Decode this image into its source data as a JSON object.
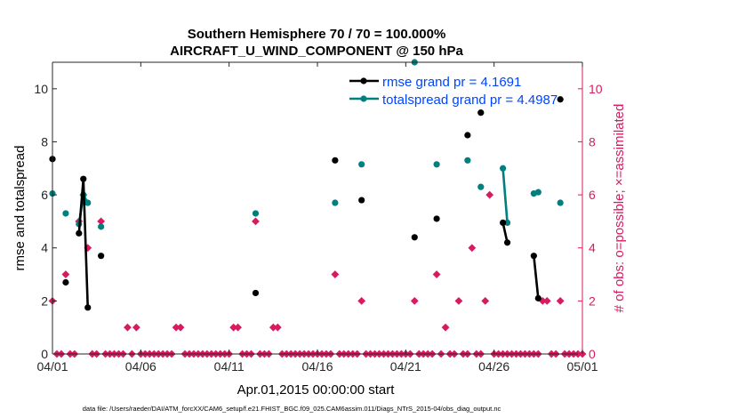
{
  "colors": {
    "rmse": "#000000",
    "spread": "#007f7f",
    "obs": "#d81b60",
    "legend_text": "#0044ff",
    "axis": "#262626"
  },
  "chart_data": {
    "type": "line",
    "title_line1": "Southern Hemisphere 70 / 70 = 100.000%",
    "title_line2": "AIRCRAFT_U_WIND_COMPONENT @ 150 hPa",
    "xlabel": "Apr.01,2015 00:00:00 start",
    "ylabel_left": "rmse and totalspread",
    "ylabel_right": "# of obs: o=possible; ×=assimilated",
    "xlim": [
      0,
      30
    ],
    "ylim_left": [
      0,
      11
    ],
    "ylim_right": [
      0,
      11
    ],
    "x_ticks": [
      0,
      5,
      10,
      15,
      20,
      25,
      30
    ],
    "x_tick_labels": [
      "04/01",
      "04/06",
      "04/11",
      "04/16",
      "04/21",
      "04/26",
      "05/01"
    ],
    "y_ticks_left": [
      0,
      2,
      4,
      6,
      8,
      10
    ],
    "y_tick_labels_left": [
      "0",
      "2",
      "4",
      "6",
      "8",
      "10"
    ],
    "y_ticks_right": [
      0,
      2,
      4,
      6,
      8,
      10
    ],
    "y_tick_labels_right": [
      "0",
      "2",
      "4",
      "6",
      "8",
      "10"
    ],
    "legend": [
      {
        "name": "rmse grand pr = 4.1691",
        "series": "rmse"
      },
      {
        "name": "totalspread grand pr = 4.4987",
        "series": "spread"
      }
    ],
    "series": [
      {
        "name": "rmse",
        "segments": [
          [
            [
              0.0,
              7.35
            ]
          ],
          [
            [
              0.75,
              2.7
            ]
          ],
          [
            [
              1.5,
              4.55
            ],
            [
              1.75,
              6.6
            ],
            [
              2.0,
              1.75
            ]
          ],
          [
            [
              2.75,
              3.7
            ]
          ],
          [
            [
              11.5,
              2.3
            ]
          ],
          [
            [
              16.0,
              7.3
            ]
          ],
          [
            [
              17.5,
              5.8
            ]
          ],
          [
            [
              20.5,
              4.4
            ]
          ],
          [
            [
              21.75,
              5.1
            ]
          ],
          [
            [
              23.5,
              8.25
            ]
          ],
          [
            [
              24.25,
              9.1
            ]
          ],
          [
            [
              25.5,
              4.95
            ],
            [
              25.75,
              4.2
            ]
          ],
          [
            [
              27.25,
              3.7
            ],
            [
              27.5,
              2.1
            ]
          ],
          [
            [
              28.75,
              9.6
            ]
          ]
        ]
      },
      {
        "name": "totalspread",
        "segments": [
          [
            [
              0.0,
              6.05
            ]
          ],
          [
            [
              0.75,
              5.3
            ]
          ],
          [
            [
              1.5,
              4.9
            ],
            [
              1.75,
              6.0
            ],
            [
              2.0,
              5.7
            ]
          ],
          [
            [
              2.75,
              4.8
            ]
          ],
          [
            [
              11.5,
              5.3
            ]
          ],
          [
            [
              16.0,
              5.7
            ]
          ],
          [
            [
              17.5,
              7.15
            ]
          ],
          [
            [
              20.5,
              11.0
            ]
          ],
          [
            [
              21.75,
              7.15
            ]
          ],
          [
            [
              23.5,
              7.3
            ]
          ],
          [
            [
              24.25,
              6.3
            ]
          ],
          [
            [
              25.5,
              7.0
            ],
            [
              25.75,
              4.95
            ]
          ],
          [
            [
              27.25,
              6.05
            ],
            [
              27.5,
              6.1
            ]
          ],
          [
            [
              28.75,
              5.7
            ]
          ]
        ]
      },
      {
        "name": "obs_possible_assimilated",
        "x": [
          0,
          0.25,
          0.5,
          0.75,
          1.0,
          1.25,
          1.5,
          1.75,
          2.0,
          2.25,
          2.5,
          2.75,
          3.0,
          3.25,
          3.5,
          3.75,
          4.0,
          4.25,
          4.5,
          4.75,
          5.0,
          5.25,
          5.5,
          5.75,
          6.0,
          6.25,
          6.5,
          6.75,
          7.0,
          7.25,
          7.5,
          7.75,
          8.0,
          8.25,
          8.5,
          8.75,
          9.0,
          9.25,
          9.5,
          9.75,
          10.0,
          10.25,
          10.5,
          10.75,
          11.0,
          11.25,
          11.5,
          11.75,
          12.0,
          12.25,
          12.5,
          12.75,
          13.0,
          13.25,
          13.5,
          13.75,
          14.0,
          14.25,
          14.5,
          14.75,
          15.0,
          15.25,
          15.5,
          15.75,
          16.0,
          16.25,
          16.5,
          16.75,
          17.0,
          17.25,
          17.5,
          17.75,
          18.0,
          18.25,
          18.5,
          18.75,
          19.0,
          19.25,
          19.5,
          19.75,
          20.0,
          20.25,
          20.5,
          20.75,
          21.0,
          21.25,
          21.5,
          21.75,
          22.0,
          22.25,
          22.5,
          22.75,
          23.0,
          23.25,
          23.5,
          23.75,
          24.0,
          24.25,
          24.5,
          24.75,
          25.0,
          25.25,
          25.5,
          25.75,
          26.0,
          26.25,
          26.5,
          26.75,
          27.0,
          27.25,
          27.5,
          27.75,
          28.0,
          28.25,
          28.5,
          28.75,
          29.0,
          29.25,
          29.5,
          29.75,
          30.0
        ],
        "values": [
          2,
          0,
          0,
          3,
          0,
          0,
          5,
          6,
          4,
          0,
          0,
          5,
          0,
          0,
          0,
          0,
          0,
          1,
          0,
          1,
          0,
          0,
          0,
          0,
          0,
          0,
          0,
          0,
          1,
          1,
          0,
          0,
          0,
          0,
          0,
          0,
          0,
          0,
          0,
          0,
          0,
          1,
          1,
          0,
          0,
          0,
          5,
          0,
          0,
          0,
          1,
          1,
          0,
          0,
          0,
          0,
          0,
          0,
          0,
          0,
          0,
          0,
          0,
          0,
          3,
          0,
          0,
          0,
          0,
          0,
          2,
          0,
          0,
          0,
          0,
          0,
          0,
          0,
          0,
          0,
          0,
          0,
          2,
          0,
          0,
          0,
          0,
          3,
          0,
          1,
          0,
          0,
          2,
          0,
          0,
          4,
          0,
          0,
          2,
          6,
          0,
          0,
          0,
          0,
          0,
          0,
          0,
          0,
          0,
          0,
          0,
          2,
          2,
          0,
          0,
          2,
          0,
          0,
          0,
          0,
          0
        ]
      }
    ]
  },
  "footer": "data file: /Users/raeder/DAI/ATM_forcXX/CAM6_setup/f.e21.FHIST_BGC.f09_025.CAM6assim.011/Diags_NTrS_2015-04/obs_diag_output.nc"
}
